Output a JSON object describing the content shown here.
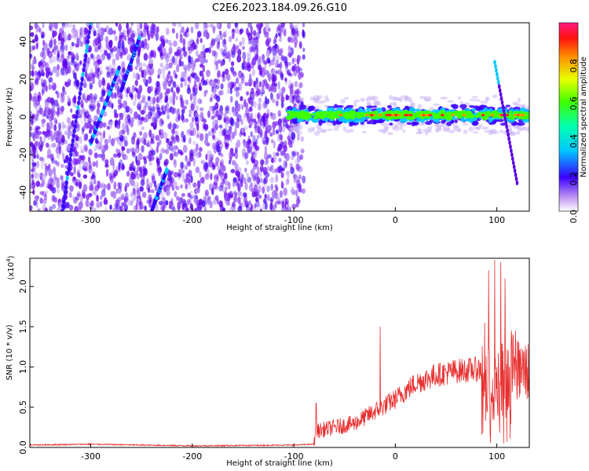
{
  "figure": {
    "title": "C2E6.2023.184.09.26.G10"
  },
  "chart_data": [
    {
      "type": "heatmap",
      "xlabel": "Height of straight line (km)",
      "ylabel": "Frequency (Hz)",
      "xlim": [
        -360,
        132
      ],
      "ylim": [
        -50,
        50
      ],
      "xticks": [
        -300,
        -200,
        -100,
        0,
        100
      ],
      "yticks": [
        -40,
        -20,
        0,
        20,
        40
      ],
      "xtick_labels": [
        "-300",
        "-200",
        "-100",
        "0",
        "100"
      ],
      "ytick_labels": [
        "-40",
        "-20",
        "0",
        "20",
        "40"
      ],
      "colorbar": {
        "label": "Normalized spectral amplitude",
        "range": [
          0,
          1
        ],
        "ticks": [
          0,
          0.2,
          0.4,
          0.6,
          0.8
        ],
        "tick_labels": [
          "0.0",
          "0.2",
          "0.4",
          "0.6",
          "0.8"
        ]
      },
      "features": {
        "noise_region_x": [
          -360,
          -90
        ],
        "signal_band_x": [
          -105,
          132
        ],
        "signal_band_center_hz": 1,
        "streaks": [
          {
            "x": [
              -328,
              -300
            ],
            "y": [
              -50,
              50
            ]
          },
          {
            "x": [
              -300,
              -272
            ],
            "y": [
              -14,
              26
            ]
          },
          {
            "x": [
              -240,
              -225
            ],
            "y": [
              -50,
              -28
            ]
          },
          {
            "x": [
              -270,
              -252
            ],
            "y": [
              14,
              42
            ]
          }
        ],
        "spike": {
          "x": [
            98,
            120
          ],
          "y": [
            -35,
            29
          ]
        }
      }
    },
    {
      "type": "line",
      "xlabel": "Height of straight line (km)",
      "ylabel": "SNR (10 * v/v)",
      "y_multiplier_label": "(x10",
      "y_multiplier_exp": "4",
      "y_multiplier_close": ")",
      "xlim": [
        -360,
        132
      ],
      "ylim": [
        0,
        2.35
      ],
      "xticks": [
        -300,
        -200,
        -100,
        0,
        100
      ],
      "yticks": [
        0,
        0.5,
        1.0,
        1.5,
        2.0
      ],
      "xtick_labels": [
        "-300",
        "-200",
        "-100",
        "0",
        "100"
      ],
      "ytick_labels": [
        "0.0",
        "0.5",
        "1.0",
        "1.5",
        "2.0"
      ],
      "series": [
        {
          "color": "#e83030",
          "profile_x": [
            -360,
            -300,
            -200,
            -100,
            -80,
            -79,
            -60,
            -40,
            -20,
            0,
            20,
            40,
            60,
            80,
            88,
            90,
            100,
            110,
            118,
            120,
            132
          ],
          "profile_y": [
            0.03,
            0.04,
            0.02,
            0.03,
            0.04,
            0.2,
            0.25,
            0.3,
            0.45,
            0.6,
            0.8,
            0.9,
            0.95,
            0.97,
            0.98,
            0.8,
            1.0,
            1.05,
            1.1,
            0.95,
            0.95
          ],
          "peaks": [
            {
              "x": 92,
              "y": 2.2
            },
            {
              "x": 98,
              "y": 2.33
            },
            {
              "x": 104,
              "y": 2.3
            },
            {
              "x": 108,
              "y": 2.1
            },
            {
              "x": 88,
              "y": 1.55
            },
            {
              "x": -15,
              "y": 1.5
            },
            {
              "x": -78,
              "y": 0.55
            }
          ]
        }
      ]
    }
  ]
}
